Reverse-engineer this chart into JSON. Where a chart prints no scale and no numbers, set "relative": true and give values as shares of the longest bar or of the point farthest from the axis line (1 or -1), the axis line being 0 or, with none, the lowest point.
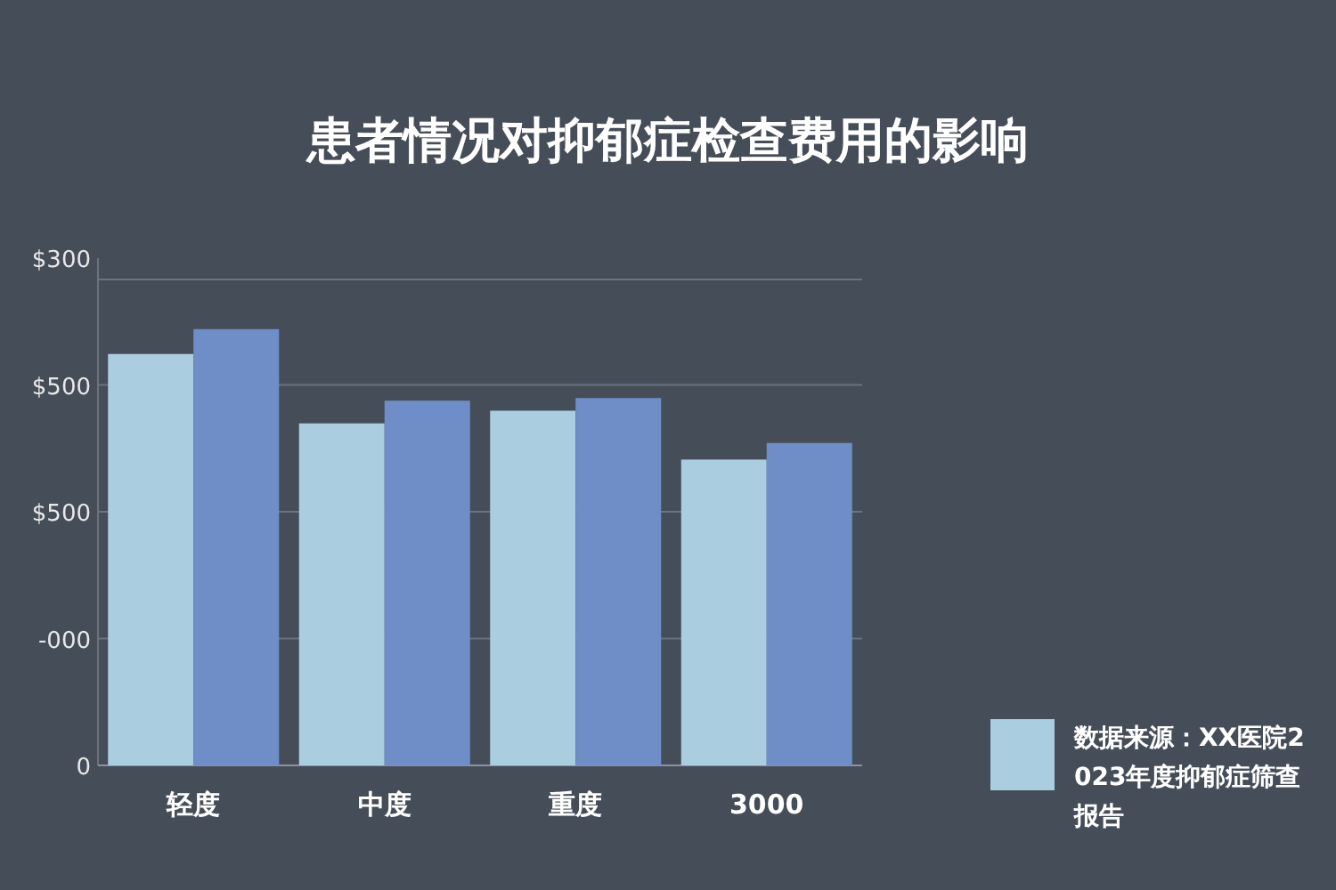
{
  "chart_data": {
    "type": "bar",
    "title": "患者情况对抑郁症检查费用的影响",
    "categories": [
      "轻度",
      "中度",
      "重度",
      "3000"
    ],
    "relative": true,
    "series": [
      {
        "name": "数据来源：XX医院2023年度抑郁症筛查报告",
        "color": "#aacde0",
        "values": [
          0.943,
          0.784,
          0.813,
          0.701
        ]
      },
      {
        "color": "#6f8ec8",
        "values": [
          1,
          0.836,
          0.842,
          0.739
        ]
      }
    ],
    "annotations": [
      "0",
      "-000",
      "$500",
      "$500",
      "$300"
    ],
    "legend": "bottom right"
  }
}
